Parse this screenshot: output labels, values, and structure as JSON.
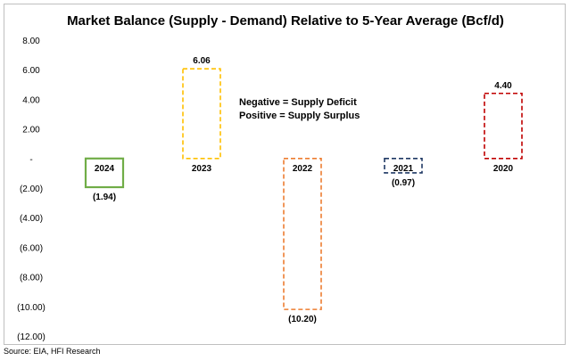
{
  "chart_data": {
    "type": "bar",
    "style": "floating-dashed-boxes",
    "title": "Market Balance (Supply - Demand) Relative to 5-Year Average (Bcf/d)",
    "xlabel": "",
    "ylabel": "",
    "ylim": [
      -12,
      8
    ],
    "yticks": [
      8,
      6,
      4,
      2,
      0,
      -2,
      -4,
      -6,
      -8,
      -10,
      -12
    ],
    "ytick_labels": [
      "8.00",
      "6.00",
      "4.00",
      "2.00",
      "-",
      "(2.00)",
      "(4.00)",
      "(6.00)",
      "(8.00)",
      "(10.00)",
      "(12.00)"
    ],
    "grid": false,
    "categories": [
      "2024",
      "2023",
      "2022",
      "2021",
      "2020"
    ],
    "values": [
      -1.94,
      6.06,
      -10.2,
      -0.97,
      4.4
    ],
    "value_labels": [
      "(1.94)",
      "6.06",
      "(10.20)",
      "(0.97)",
      "4.40"
    ],
    "colors": [
      "#70ad47",
      "#ffc000",
      "#ed7d31",
      "#1f3864",
      "#c00000"
    ],
    "line_styles": [
      "solid",
      "dashed",
      "dashed",
      "dashed",
      "dashed"
    ],
    "annotations": [
      "Negative = Supply Deficit",
      "Positive = Supply Surplus"
    ]
  },
  "source": "Source: EIA, HFI Research"
}
